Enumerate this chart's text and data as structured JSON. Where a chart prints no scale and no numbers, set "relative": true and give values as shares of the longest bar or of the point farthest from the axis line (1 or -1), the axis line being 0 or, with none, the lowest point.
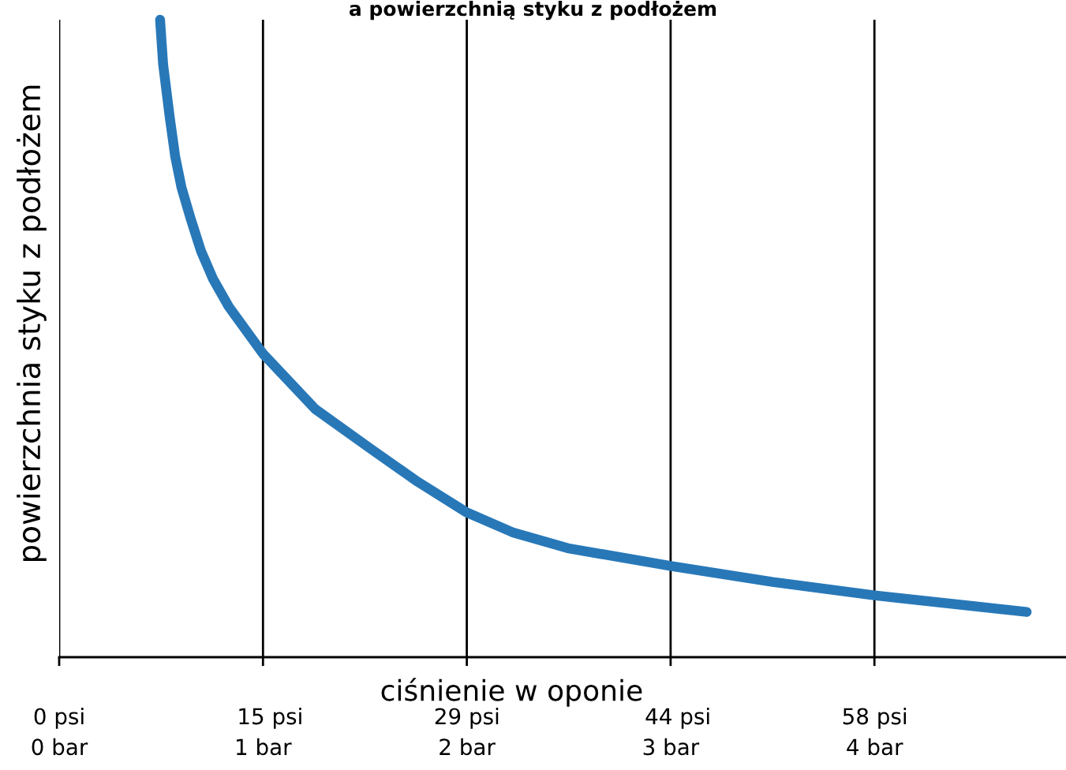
{
  "chart_data": {
    "type": "line",
    "title": "a powierzchnią styku z podłożem",
    "xlabel": "ciśnienie w oponie",
    "ylabel": "powierzchnia styku z podłożem",
    "relative": true,
    "xlim": [
      0,
      4.94
    ],
    "xticks": [
      {
        "value": 0,
        "label": "0 bar"
      },
      {
        "value": 1,
        "label": "1 bar"
      },
      {
        "value": 2,
        "label": "2 bar"
      },
      {
        "value": 3,
        "label": "3 bar"
      },
      {
        "value": 4,
        "label": "4 bar"
      }
    ],
    "x2lim": [
      0,
      71.6
    ],
    "x2ticks": [
      {
        "value": 0,
        "label": "0 psi"
      },
      {
        "value": 15,
        "label": "15 psi"
      },
      {
        "value": 29,
        "label": "29 psi"
      },
      {
        "value": 44,
        "label": "44 psi"
      },
      {
        "value": 58,
        "label": "58 psi"
      }
    ],
    "grid": "x",
    "legend": false,
    "line_style": "solid",
    "series": [
      {
        "color": "#2878b8",
        "x": [
          0.495,
          0.51,
          0.542,
          0.569,
          0.6,
          0.646,
          0.696,
          0.754,
          0.832,
          1.0,
          1.257,
          1.528,
          1.76,
          2.0,
          2.224,
          2.495,
          3.0,
          3.5,
          4.0,
          4.747
        ],
        "values": [
          1.0,
          0.93,
          0.848,
          0.786,
          0.737,
          0.687,
          0.637,
          0.594,
          0.55,
          0.476,
          0.389,
          0.327,
          0.275,
          0.227,
          0.196,
          0.171,
          0.143,
          0.118,
          0.097,
          0.071
        ]
      }
    ]
  }
}
